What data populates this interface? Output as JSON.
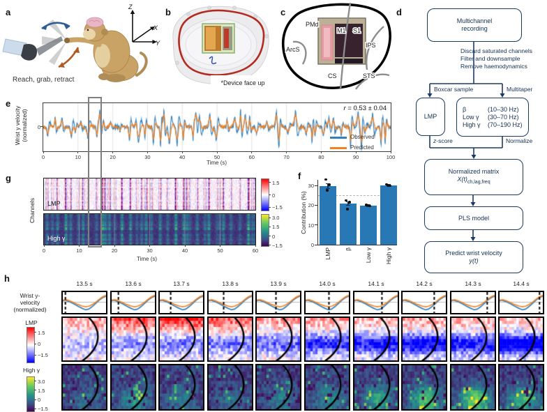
{
  "figure": {
    "panel_labels": {
      "a": "a",
      "b": "b",
      "c": "c",
      "d": "d",
      "e": "e",
      "f": "f",
      "g": "g",
      "h": "h"
    }
  },
  "colors": {
    "observed": "#3380bc",
    "predicted": "#f58220",
    "bar": "#2878b5",
    "flowchart": "#1b3a63",
    "highlight": "#7f7f7f",
    "dashed_ref": "#b3b3b3",
    "error_bar": "#16355c"
  },
  "panel_a": {
    "caption": "Reach, grab, retract",
    "axis_z": "Z",
    "axis_x": "X",
    "axis_y": "Y"
  },
  "panel_b": {
    "note": "*Device face up"
  },
  "panel_c": {
    "labels": {
      "pmd": "PMd",
      "m1": "M1",
      "s1": "S1",
      "arcs": "ArcS",
      "cs": "CS",
      "ips": "IPS",
      "sts": "STS"
    }
  },
  "panel_d": {
    "title_line1": "Multichannel",
    "title_line2": "recording",
    "preproc": [
      "Discard saturated channels",
      "Filter and downsample",
      "Remove haemodynamics"
    ],
    "boxcar": "Boxcar sample",
    "multitaper": "Multitaper",
    "lmp": "LMP",
    "bands": [
      {
        "band": "β",
        "range": "(10–30 Hz)"
      },
      {
        "band": "Low γ",
        "range": "(30–70 Hz)"
      },
      {
        "band": "High γ",
        "range": "(70–190 Hz)"
      }
    ],
    "zscore_italic": "z",
    "zscore_rest": "-score",
    "normalize": "Normalize",
    "norm_line1": "Normalized matrix",
    "norm_math": "X(t)",
    "norm_sub": "ch,lag,freq",
    "pls": "PLS model",
    "predict_line1": "Predict wrist velocity",
    "predict_math": "y(t)"
  },
  "chart_data": [
    {
      "id": "e",
      "type": "line",
      "ylabel_lines": [
        "Wrist y velocity",
        "(normalized)"
      ],
      "xlabel": "Time (s)",
      "ytick": "0",
      "xticks": [
        "0",
        "10",
        "20",
        "30",
        "40",
        "50",
        "60",
        "70",
        "80",
        "90",
        "100"
      ],
      "xlim": [
        0,
        100
      ],
      "annotation_symbol": "r",
      "annotation_rest": " = 0.53 ± 0.04",
      "legend": [
        {
          "label": "Observed",
          "color": "#3380bc"
        },
        {
          "label": "Predicted",
          "color": "#f58220"
        }
      ],
      "data_note": "continuous traces not recoverable from pixels; regenerated procedurally with matching envelope"
    },
    {
      "id": "f",
      "type": "bar",
      "categories": [
        "LMP",
        "β",
        "Low γ",
        "High γ"
      ],
      "values": [
        29.8,
        21.0,
        19.8,
        30.2
      ],
      "point_values": [
        [
          33.0,
          30.4,
          27.6
        ],
        [
          22.4,
          21.6,
          18.1
        ],
        [
          20.2,
          19.6,
          19.9
        ],
        [
          30.6,
          29.9,
          30.1
        ]
      ],
      "errors": [
        1.2,
        0.9,
        0.5,
        0.4
      ],
      "reference_line": 25,
      "ylabel": "Contribution (%)",
      "yticks": [
        0,
        10,
        20,
        30
      ],
      "ylim": [
        0,
        35
      ]
    },
    {
      "id": "g",
      "type": "heatmap",
      "ylabel": "Channels",
      "xlabel": "Time (s)",
      "xticks": [
        "0",
        "10",
        "20",
        "30",
        "40",
        "50",
        "60"
      ],
      "xlim": [
        0,
        60
      ],
      "subpanels": [
        {
          "label": "LMP",
          "cmap": "bwr",
          "colorbar_ticks": [
            "1.5",
            "0",
            "−1.5"
          ],
          "clim": [
            -2,
            2
          ]
        },
        {
          "label": "High γ",
          "cmap": "viridis",
          "colorbar_ticks": [
            "3.0",
            "1.5",
            "0",
            "−1.5"
          ],
          "clim": [
            -1.5,
            3.5
          ]
        }
      ],
      "data_note": "channel×time activity texture regenerated procedurally"
    },
    {
      "id": "h",
      "type": "heatmap-sequence",
      "times": [
        "13.5 s",
        "13.6 s",
        "13.7 s",
        "13.8 s",
        "13.9 s",
        "14.0 s",
        "14.1 s",
        "14.2 s",
        "14.3 s",
        "14.4 s"
      ],
      "trace_label_lines": [
        "Wrist y-",
        "velocity",
        "(normalized)"
      ],
      "rows": [
        {
          "label": "LMP",
          "cmap": "bwr",
          "colorbar_ticks": [
            "1.5",
            "0",
            "−1.5"
          ],
          "clim": [
            -2,
            2
          ]
        },
        {
          "label": "High γ",
          "cmap": "viridis",
          "colorbar_ticks": [
            "3.0",
            "1.5",
            "0",
            "−1.5"
          ],
          "clim": [
            -1.5,
            3.5
          ]
        }
      ],
      "columns": 10,
      "data_note": "electrode-grid frames regenerated procedurally"
    }
  ]
}
